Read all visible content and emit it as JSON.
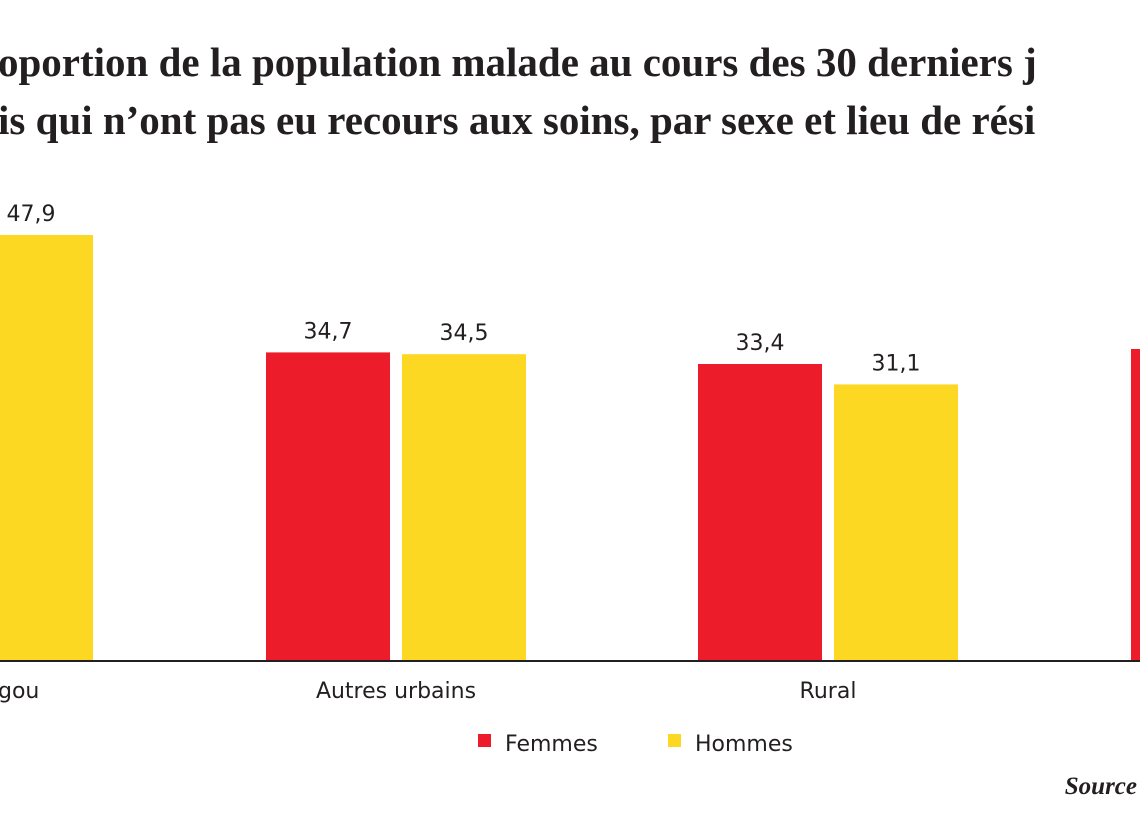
{
  "title_lines": [
    "oportion de la population malade au cours des 30 derniers j",
    "is qui n’ont pas eu recours aux soins, par sexe et lieu de rési"
  ],
  "source_label": "Source",
  "colors": {
    "femmes": "#ec1c2a",
    "hommes": "#fcd822",
    "axis": "#231f20",
    "text": "#231f20"
  },
  "chart_data": {
    "type": "bar",
    "title": "oportion de la population malade au cours des 30 derniers j / is qui n’ont pas eu recours aux soins, par sexe et lieu de rési",
    "categories": [
      "gou",
      "Autres urbains",
      "Rural",
      ""
    ],
    "series": [
      {
        "name": "Femmes",
        "color": "#ec1c2a",
        "values": [
          null,
          34.7,
          33.4,
          null
        ],
        "labels": [
          "",
          "34,7",
          "33,4",
          ""
        ]
      },
      {
        "name": "Hommes",
        "color": "#fcd822",
        "values": [
          47.9,
          34.5,
          31.1,
          null
        ],
        "labels": [
          "47,9",
          "34,5",
          "31,1",
          ""
        ]
      }
    ],
    "legend": [
      "Femmes",
      "Hommes"
    ],
    "legend_position": "bottom",
    "grid": false
  }
}
